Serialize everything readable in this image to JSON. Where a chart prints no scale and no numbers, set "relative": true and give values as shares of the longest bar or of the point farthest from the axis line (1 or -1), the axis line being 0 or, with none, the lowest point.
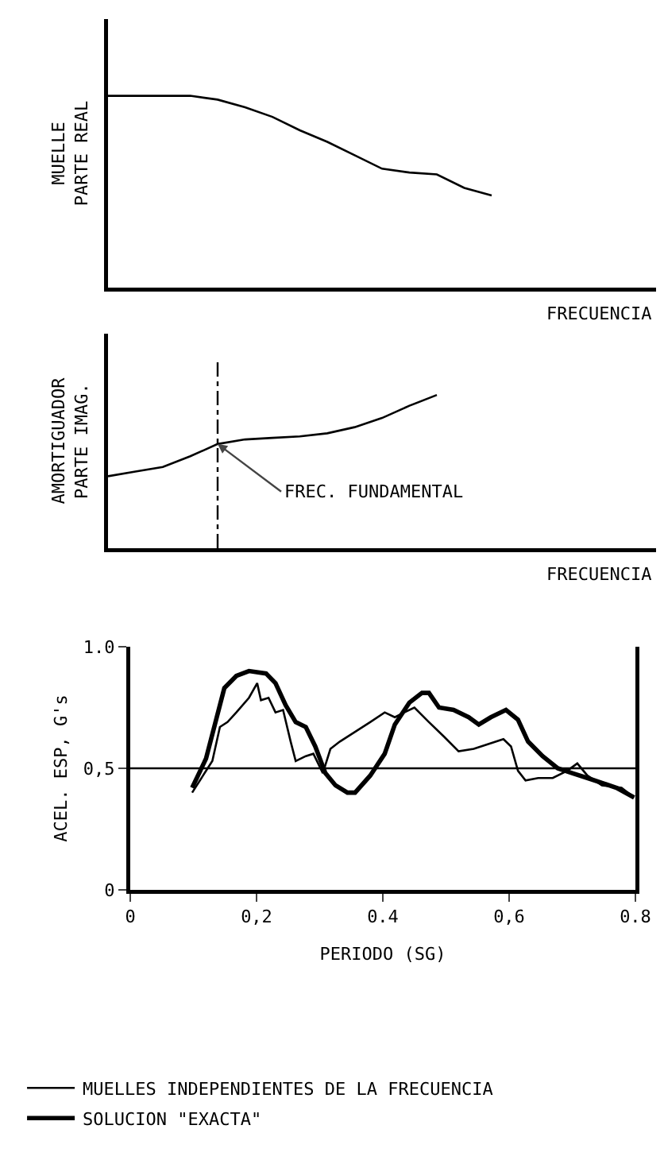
{
  "chart_data": [
    {
      "type": "line",
      "relative": true,
      "ylabel": "MUELLE\nPARTE REAL",
      "xlabel": "FRECUENCIA",
      "categories": [
        null,
        null,
        null,
        null,
        null,
        null,
        null,
        null,
        null,
        null,
        null,
        null,
        null,
        null,
        null,
        null,
        null,
        null,
        null,
        null,
        null
      ],
      "series": [
        {
          "color": "#000000",
          "values": [
            1.0,
            1.0,
            1.0,
            1.0,
            0.98,
            0.94,
            0.89,
            0.82,
            0.76,
            0.69,
            0.62,
            0.6,
            0.59,
            0.52,
            0.48,
            null,
            null,
            null,
            null,
            null,
            null
          ]
        }
      ],
      "grid": false,
      "legend": false
    },
    {
      "type": "line",
      "relative": true,
      "ylabel": "AMORTIGUADOR\nPARTE IMAG.",
      "xlabel": "FRECUENCIA",
      "categories": [
        null,
        null,
        null,
        null,
        null,
        null,
        null,
        null,
        null,
        null,
        null,
        null,
        null,
        null,
        null,
        null,
        null,
        null,
        null,
        null,
        null
      ],
      "series": [
        {
          "color": "#000000",
          "values": [
            0.47,
            0.5,
            0.53,
            0.6,
            0.68,
            0.71,
            0.72,
            0.73,
            0.75,
            0.79,
            0.85,
            0.93,
            1.0,
            null,
            null,
            null,
            null,
            null,
            null,
            null,
            null
          ]
        }
      ],
      "annotations": [
        "FREC. FUNDAMENTAL"
      ],
      "grid": false,
      "legend": false
    },
    {
      "type": "line",
      "xlabel": "PERIODO (SG)",
      "ylabel": "ACEL. ESP, G's",
      "xlim": [
        0,
        0.8
      ],
      "ylim": [
        0,
        1.0
      ],
      "xticks": [
        0,
        {
          "value": 0.2,
          "label": "0,2"
        },
        {
          "value": 0.4,
          "label": "0.4"
        },
        {
          "value": 0.6,
          "label": "0,6"
        },
        {
          "value": 0.8,
          "label": "0.8"
        }
      ],
      "yticks": [
        0,
        {
          "value": 0.5,
          "label": "0,5"
        },
        {
          "value": 1.0,
          "label": "1.0"
        }
      ],
      "series": [
        {
          "name": "MUELLES INDEPENDIENTES DE LA FRECUENCIA",
          "color": "#000000",
          "x": [
            0.098,
            0.13,
            0.142,
            0.154,
            0.168,
            0.188,
            0.201,
            0.207,
            0.219,
            0.23,
            0.242,
            0.254,
            0.262,
            0.278,
            0.29,
            0.305,
            0.317,
            0.332,
            0.356,
            0.38,
            0.403,
            0.419,
            0.434,
            0.45,
            0.473,
            0.497,
            0.52,
            0.544,
            0.567,
            0.591,
            0.603,
            0.614,
            0.626,
            0.646,
            0.669,
            0.692,
            0.708,
            0.724,
            0.747,
            0.778,
            0.798
          ],
          "values": [
            0.4,
            0.53,
            0.67,
            0.69,
            0.73,
            0.79,
            0.85,
            0.78,
            0.79,
            0.73,
            0.74,
            0.61,
            0.53,
            0.55,
            0.56,
            0.48,
            0.58,
            0.61,
            0.65,
            0.69,
            0.73,
            0.71,
            0.73,
            0.75,
            0.69,
            0.63,
            0.57,
            0.58,
            0.6,
            0.62,
            0.59,
            0.49,
            0.45,
            0.46,
            0.46,
            0.49,
            0.52,
            0.47,
            0.43,
            0.42,
            0.38
          ]
        },
        {
          "name": "SOLUCION \"EXACTA\"",
          "color": "#000000",
          "x": [
            0.098,
            0.12,
            0.149,
            0.168,
            0.188,
            0.215,
            0.23,
            0.246,
            0.262,
            0.278,
            0.293,
            0.309,
            0.325,
            0.344,
            0.356,
            0.38,
            0.403,
            0.419,
            0.442,
            0.462,
            0.473,
            0.489,
            0.512,
            0.536,
            0.552,
            0.571,
            0.595,
            0.614,
            0.63,
            0.653,
            0.677,
            0.7,
            0.724,
            0.747,
            0.77,
            0.798
          ],
          "values": [
            0.42,
            0.54,
            0.83,
            0.88,
            0.9,
            0.89,
            0.85,
            0.76,
            0.69,
            0.67,
            0.59,
            0.48,
            0.43,
            0.4,
            0.4,
            0.47,
            0.56,
            0.68,
            0.77,
            0.81,
            0.81,
            0.75,
            0.74,
            0.71,
            0.68,
            0.71,
            0.74,
            0.7,
            0.61,
            0.55,
            0.5,
            0.48,
            0.46,
            0.44,
            0.42,
            0.38
          ]
        }
      ],
      "ref_lines": [
        {
          "axis": "y",
          "value": 0.5,
          "color": "#000000"
        }
      ],
      "grid": false,
      "legend": "bottom",
      "marker": "none",
      "line_style": "solid"
    }
  ]
}
